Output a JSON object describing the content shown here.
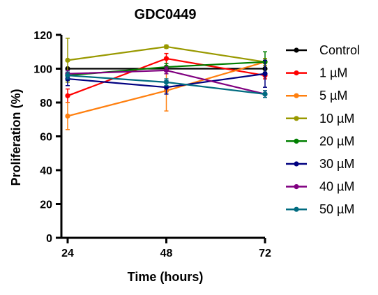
{
  "chart_data": {
    "type": "line",
    "title": "GDC0449",
    "xlabel": "Time (hours)",
    "ylabel": "Proliferation (%)",
    "x": [
      24,
      48,
      72
    ],
    "x_tick_labels": [
      "24",
      "48",
      "72"
    ],
    "y_ticks": [
      0,
      20,
      40,
      60,
      80,
      100,
      120
    ],
    "ylim": [
      0,
      120
    ],
    "legend_position": "right",
    "grid": false,
    "series": [
      {
        "name": "Control",
        "color": "#000000",
        "values": [
          100,
          100,
          100
        ],
        "errors": [
          0,
          0,
          0
        ]
      },
      {
        "name": "1 µM",
        "color": "#ff0000",
        "values": [
          84,
          106,
          96
        ],
        "errors": [
          4,
          3,
          2
        ]
      },
      {
        "name": "5 µM",
        "color": "#ff7f0e",
        "values": [
          72,
          87,
          104
        ],
        "errors": [
          8,
          12,
          2
        ]
      },
      {
        "name": "10 µM",
        "color": "#999900",
        "values": [
          105,
          113,
          104
        ],
        "errors": [
          13,
          1,
          2
        ]
      },
      {
        "name": "20 µM",
        "color": "#007f00",
        "values": [
          96,
          101,
          104
        ],
        "errors": [
          3,
          2,
          6
        ]
      },
      {
        "name": "30 µM",
        "color": "#000080",
        "values": [
          94,
          89,
          97
        ],
        "errors": [
          4,
          4,
          8
        ]
      },
      {
        "name": "40 µM",
        "color": "#800080",
        "values": [
          97,
          99,
          85
        ],
        "errors": [
          2,
          2,
          2
        ]
      },
      {
        "name": "50 µM",
        "color": "#006b80",
        "values": [
          96,
          92,
          85
        ],
        "errors": [
          2,
          2,
          2
        ]
      }
    ]
  }
}
